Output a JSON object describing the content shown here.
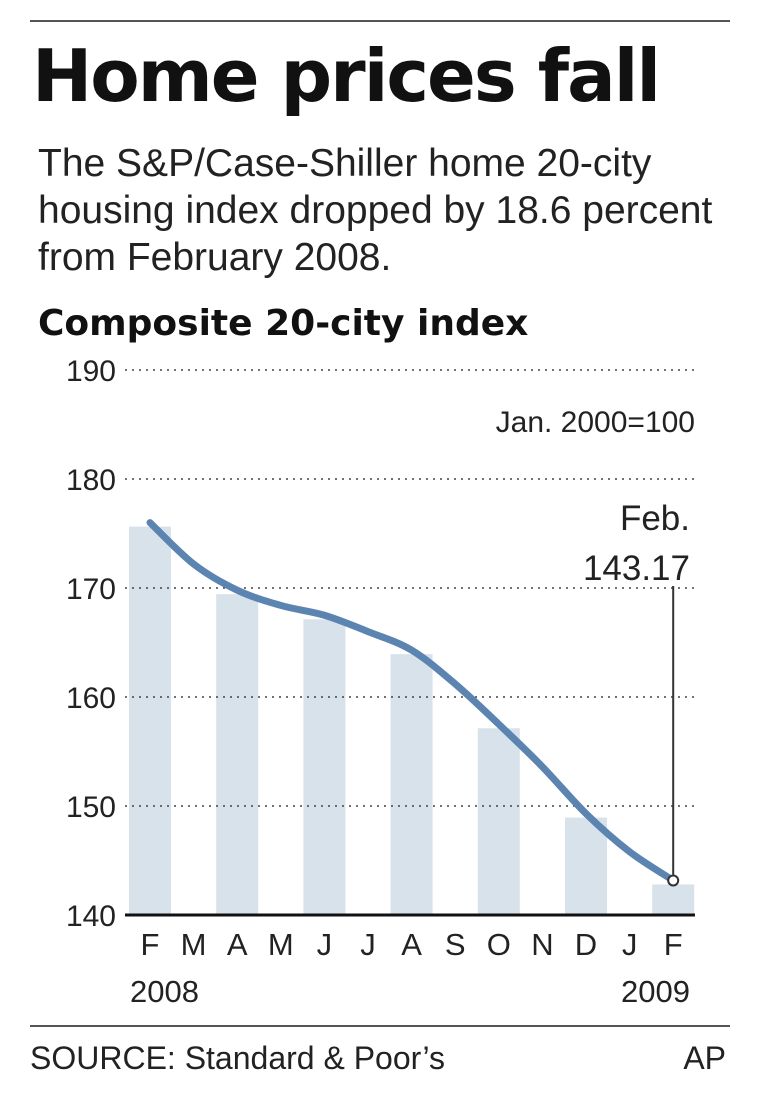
{
  "headline": "Home prices fall",
  "subtitle": "The S&P/Case-Shiller home 20-city housing index dropped by 18.6 percent from February 2008.",
  "source": "SOURCE: Standard & Poor’s",
  "credit": "AP",
  "colors": {
    "line": "#5b84b1",
    "bar": "#d8e2eb",
    "text": "#222222"
  },
  "chart_data": {
    "type": "line",
    "title": "Composite 20-city index",
    "unit_note": "Jan. 2000=100",
    "categories": [
      "F",
      "M",
      "A",
      "M",
      "J",
      "J",
      "A",
      "S",
      "O",
      "N",
      "D",
      "J",
      "F"
    ],
    "year_labels": [
      "2008",
      "2009"
    ],
    "values": [
      176.0,
      172.2,
      169.8,
      168.4,
      167.5,
      166.0,
      164.3,
      161.2,
      157.5,
      153.6,
      149.3,
      145.8,
      143.17
    ],
    "ylim": [
      140,
      190
    ],
    "yticks": [
      140,
      150,
      160,
      170,
      180,
      190
    ],
    "annotation": {
      "label_1": "Feb.",
      "label_2": "143.17",
      "value": 143.17,
      "index": 12
    },
    "grid": "dotted horizontal",
    "xlabel": "",
    "ylabel": ""
  }
}
